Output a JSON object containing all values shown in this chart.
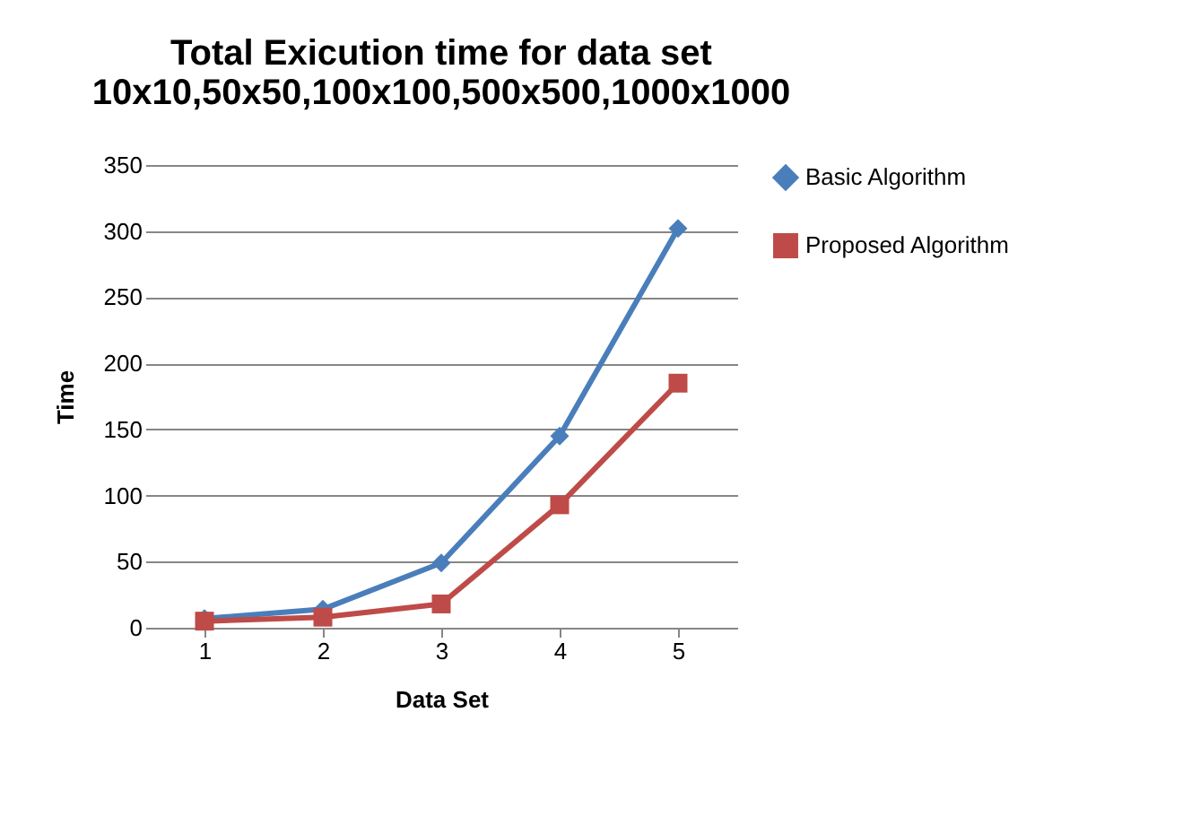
{
  "chart_data": {
    "type": "line",
    "title": "Total Exicution time for  data set\n10x10,50x50,100x100,500x500,1000x1000",
    "xlabel": "Data Set",
    "ylabel": "Time",
    "categories": [
      "1",
      "2",
      "3",
      "4",
      "5"
    ],
    "series": [
      {
        "name": "Basic Algorithm",
        "color": "#4a7ebb",
        "marker": "diamond",
        "values": [
          7,
          14,
          49,
          145,
          302
        ]
      },
      {
        "name": "Proposed Algorithm",
        "color": "#be4b48",
        "marker": "square",
        "values": [
          5,
          8,
          18,
          93,
          185
        ]
      }
    ],
    "ylim": [
      0,
      350
    ],
    "yticks": [
      0,
      50,
      100,
      150,
      200,
      250,
      300,
      350
    ],
    "grid": "y",
    "legend": "right"
  }
}
